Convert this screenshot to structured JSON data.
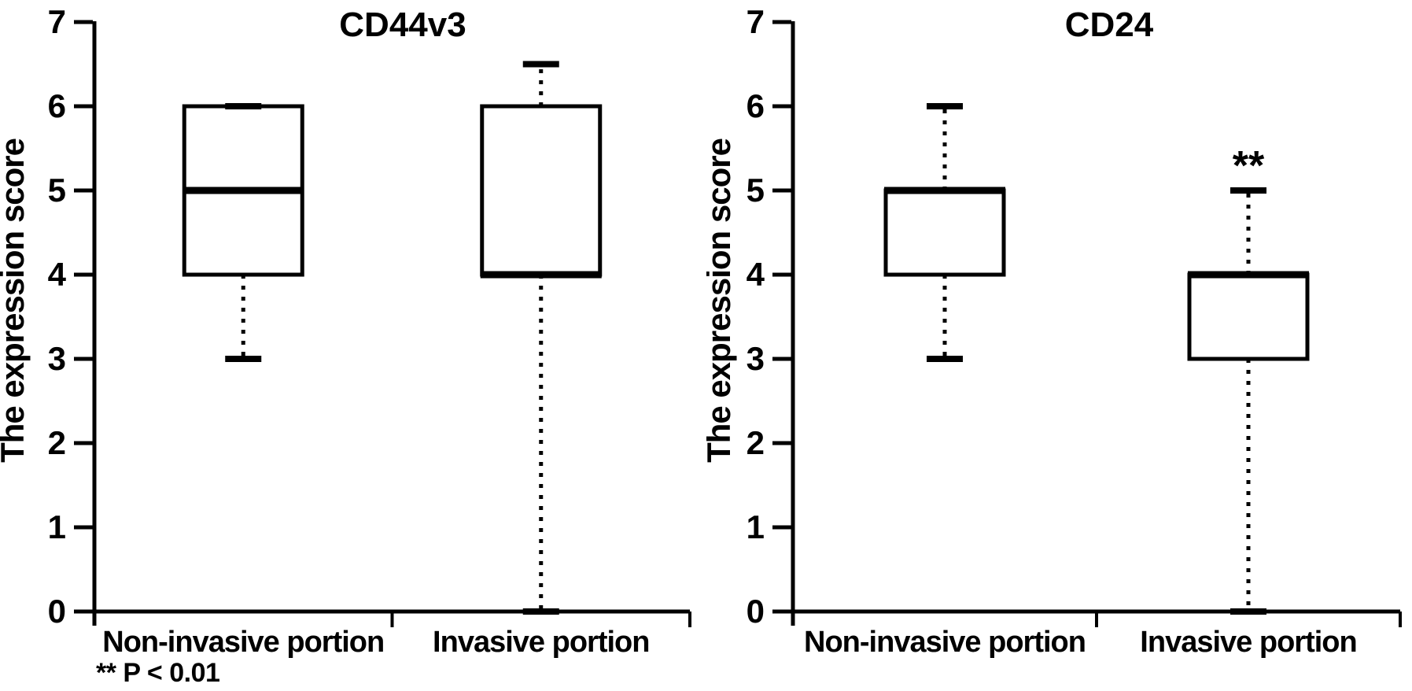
{
  "figure": {
    "background_color": "#ffffff",
    "ink_color": "#000000",
    "ylabel": "The expression score",
    "footnote": "** P < 0.01",
    "significance_marker": "**"
  },
  "chart_data": [
    {
      "type": "box",
      "title": "CD44v3",
      "ylabel": "The expression score",
      "ylim": [
        0,
        7
      ],
      "yticks": [
        0,
        1,
        2,
        3,
        4,
        5,
        6,
        7
      ],
      "grid": false,
      "categories": [
        "Non-invasive portion",
        "Invasive portion"
      ],
      "series": [
        {
          "category": "Non-invasive portion",
          "whisker_low": 3,
          "q1": 4,
          "median": 5,
          "q3": 6,
          "whisker_high": 6,
          "annotation": ""
        },
        {
          "category": "Invasive portion",
          "whisker_low": 0,
          "q1": 4,
          "median": 4,
          "q3": 6,
          "whisker_high": 6.5,
          "annotation": ""
        }
      ],
      "footnote": "** P < 0.01"
    },
    {
      "type": "box",
      "title": "CD24",
      "ylabel": "The expression score",
      "ylim": [
        0,
        7
      ],
      "yticks": [
        0,
        1,
        2,
        3,
        4,
        5,
        6,
        7
      ],
      "grid": false,
      "categories": [
        "Non-invasive portion",
        "Invasive portion"
      ],
      "series": [
        {
          "category": "Non-invasive portion",
          "whisker_low": 3,
          "q1": 4,
          "median": 5,
          "q3": 5,
          "whisker_high": 6,
          "annotation": ""
        },
        {
          "category": "Invasive portion",
          "whisker_low": 0,
          "q1": 3,
          "median": 4,
          "q3": 4,
          "whisker_high": 5,
          "annotation": "**"
        }
      ],
      "footnote": ""
    }
  ]
}
